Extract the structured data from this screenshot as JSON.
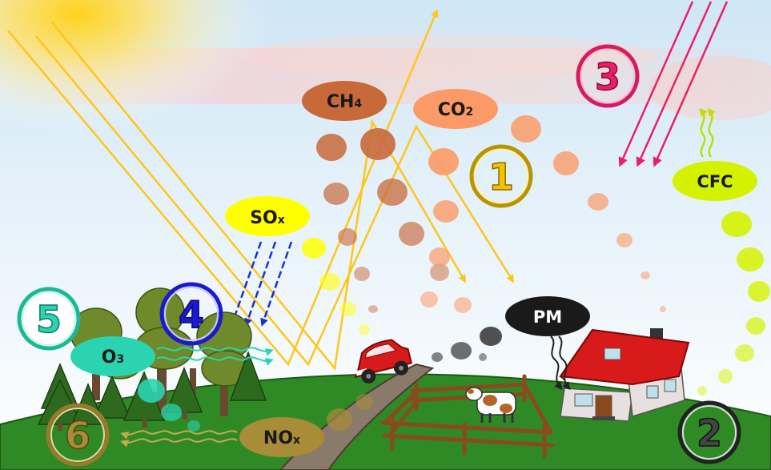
{
  "labels": {
    "ch4": {
      "main": "CH",
      "sub": "4"
    },
    "co2": {
      "main": "CO",
      "sub": "2"
    },
    "sox": {
      "main": "SO",
      "sub": "x"
    },
    "cfc": "CFC",
    "pm": "PM",
    "o3": {
      "main": "O",
      "sub": "3"
    },
    "nox": {
      "main": "NO",
      "sub": "x"
    }
  },
  "markers": [
    "1",
    "2",
    "3",
    "4",
    "5",
    "6"
  ],
  "colors": {
    "sun": "#ffd21a",
    "light_ray": "#ffc61a",
    "ch4": "#c8693a",
    "co2": "#fb9a66",
    "sox": "#ffff00",
    "cfc": "#d4f200",
    "pm": "#1a1a1a",
    "o3": "#2ad4b0",
    "nox": "#a88c38",
    "uv_ray": "#e8206a",
    "acid_rain": "#1530d8",
    "ground": "#2f8a25",
    "marker_1": "#e6b800",
    "marker_2": "#222222",
    "marker_3": "#d81a5e",
    "marker_4": "#1a1ad0",
    "marker_5": "#1ab896",
    "marker_6": "#9a7a2a"
  },
  "icons": [
    "sun",
    "car",
    "cow",
    "house",
    "fence",
    "trees",
    "road"
  ]
}
